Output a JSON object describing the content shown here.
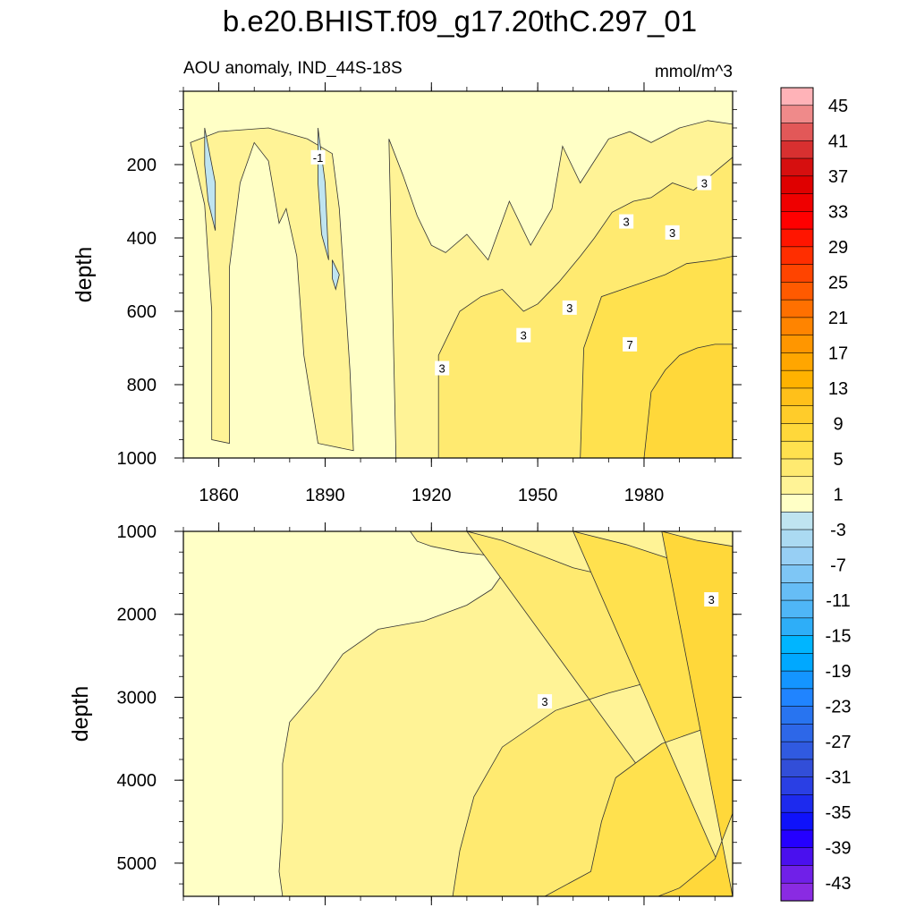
{
  "chart_data": {
    "type": "heatmap",
    "title": "b.e20.BHIST.f09_g17.20thC.297_01",
    "subtitle_left": "AOU anomaly, IND_44S-18S",
    "subtitle_right": "mmol/m^3",
    "x": {
      "range": [
        1850,
        2005
      ],
      "ticks": [
        1860,
        1890,
        1920,
        1950,
        1980
      ]
    },
    "panels": [
      {
        "ylabel": "depth",
        "ylim": [
          0,
          1000
        ],
        "yticks": [
          200,
          400,
          600,
          800,
          1000
        ],
        "regions": [
          {
            "level": 1,
            "pts": [
              [
                1850,
                0
              ],
              [
                2005,
                0
              ],
              [
                2005,
                1000
              ],
              [
                1850,
                1000
              ]
            ]
          },
          {
            "level": 3,
            "pts": [
              [
                1852,
                140
              ],
              [
                1856,
                310
              ],
              [
                1858,
                600
              ],
              [
                1858,
                950
              ],
              [
                1863,
                960
              ],
              [
                1863,
                480
              ],
              [
                1866,
                250
              ],
              [
                1870,
                140
              ],
              [
                1874,
                190
              ],
              [
                1877,
                360
              ],
              [
                1879,
                320
              ],
              [
                1882,
                450
              ],
              [
                1884,
                720
              ],
              [
                1888,
                960
              ],
              [
                1898,
                980
              ],
              [
                1897,
                760
              ],
              [
                1894,
                320
              ],
              [
                1892,
                170
              ],
              [
                1885,
                130
              ],
              [
                1874,
                100
              ],
              [
                1860,
                110
              ]
            ]
          },
          {
            "level": 3,
            "pts": [
              [
                1908,
                130
              ],
              [
                1912,
                230
              ],
              [
                1916,
                340
              ],
              [
                1920,
                420
              ],
              [
                1924,
                440
              ],
              [
                1930,
                390
              ],
              [
                1936,
                460
              ],
              [
                1942,
                300
              ],
              [
                1948,
                420
              ],
              [
                1954,
                320
              ],
              [
                1957,
                150
              ],
              [
                1962,
                250
              ],
              [
                1966,
                190
              ],
              [
                1970,
                130
              ],
              [
                1976,
                110
              ],
              [
                1982,
                140
              ],
              [
                1990,
                100
              ],
              [
                1998,
                80
              ],
              [
                2005,
                90
              ],
              [
                2005,
                1000
              ],
              [
                1910,
                1000
              ]
            ]
          },
          {
            "level": 5,
            "pts": [
              [
                1922,
                1000
              ],
              [
                1922,
                720
              ],
              [
                1928,
                600
              ],
              [
                1934,
                560
              ],
              [
                1940,
                540
              ],
              [
                1946,
                600
              ],
              [
                1950,
                580
              ],
              [
                1956,
                520
              ],
              [
                1962,
                450
              ],
              [
                1966,
                400
              ],
              [
                1971,
                330
              ],
              [
                1977,
                300
              ],
              [
                1982,
                290
              ],
              [
                1988,
                250
              ],
              [
                1994,
                270
              ],
              [
                2000,
                220
              ],
              [
                2005,
                180
              ],
              [
                2005,
                1000
              ]
            ]
          },
          {
            "level": 7,
            "pts": [
              [
                1962,
                1000
              ],
              [
                1963,
                700
              ],
              [
                1968,
                560
              ],
              [
                1974,
                540
              ],
              [
                1980,
                520
              ],
              [
                1986,
                500
              ],
              [
                1992,
                470
              ],
              [
                2000,
                460
              ],
              [
                2005,
                450
              ],
              [
                2005,
                1000
              ]
            ]
          },
          {
            "level": 9,
            "pts": [
              [
                1980,
                1000
              ],
              [
                1982,
                820
              ],
              [
                1986,
                760
              ],
              [
                1990,
                720
              ],
              [
                1995,
                700
              ],
              [
                2000,
                690
              ],
              [
                2005,
                690
              ],
              [
                2005,
                1000
              ]
            ]
          },
          {
            "level": -3,
            "pts": [
              [
                1856,
                100
              ],
              [
                1859,
                250
              ],
              [
                1859,
                380
              ],
              [
                1857,
                300
              ],
              [
                1856,
                200
              ]
            ]
          },
          {
            "level": -3,
            "pts": [
              [
                1888,
                100
              ],
              [
                1890,
                250
              ],
              [
                1891,
                460
              ],
              [
                1889,
                390
              ],
              [
                1888,
                250
              ]
            ]
          },
          {
            "level": -3,
            "pts": [
              [
                1892,
                460
              ],
              [
                1894,
                500
              ],
              [
                1893,
                540
              ],
              [
                1892,
                510
              ]
            ]
          }
        ],
        "labels": [
          {
            "text": "-1",
            "x": 1888,
            "y": 180
          },
          {
            "text": "3",
            "x": 1923,
            "y": 755
          },
          {
            "text": "3",
            "x": 1946,
            "y": 665
          },
          {
            "text": "3",
            "x": 1959,
            "y": 590
          },
          {
            "text": "3",
            "x": 1975,
            "y": 355
          },
          {
            "text": "3",
            "x": 1988,
            "y": 385
          },
          {
            "text": "3",
            "x": 1997,
            "y": 250
          },
          {
            "text": "7",
            "x": 1976,
            "y": 690
          }
        ]
      },
      {
        "ylabel": "depth",
        "ylim": [
          1000,
          5400
        ],
        "yticks": [
          1000,
          2000,
          3000,
          4000,
          5000
        ],
        "regions": [
          {
            "level": 1,
            "pts": [
              [
                1850,
                1000
              ],
              [
                2005,
                1000
              ],
              [
                2005,
                5400
              ],
              [
                1850,
                5400
              ]
            ]
          },
          {
            "level": 3,
            "pts": [
              [
                1914,
                1000
              ],
              [
                1916,
                1120
              ],
              [
                1920,
                1180
              ],
              [
                1928,
                1250
              ],
              [
                1936,
                1290
              ],
              [
                1942,
                1400
              ],
              [
                1937,
                1700
              ],
              [
                1930,
                1890
              ],
              [
                1918,
                2080
              ],
              [
                1905,
                2180
              ],
              [
                1895,
                2480
              ],
              [
                1888,
                2900
              ],
              [
                1880,
                3300
              ],
              [
                1878,
                3800
              ],
              [
                1878,
                4500
              ],
              [
                1877,
                5100
              ],
              [
                1878,
                5400
              ],
              [
                2005,
                5400
              ],
              [
                2005,
                1000
              ]
            ]
          },
          {
            "level": 5,
            "pts": [
              [
                1930,
                1000
              ],
              [
                1940,
                1110
              ],
              [
                1960,
                1440
              ],
              [
                1980,
                1640
              ],
              [
                2005,
                1940
              ],
              [
                2005,
                2560
              ],
              [
                1990,
                2720
              ],
              [
                1970,
                2950
              ],
              [
                1955,
                3160
              ],
              [
                1940,
                3600
              ],
              [
                1932,
                4200
              ],
              [
                1928,
                4850
              ],
              [
                1926,
                5400
              ],
              [
                2005,
                5400
              ]
            ]
          },
          {
            "level": 7,
            "pts": [
              [
                1960,
                1000
              ],
              [
                1975,
                1160
              ],
              [
                1990,
                1370
              ],
              [
                2005,
                1540
              ],
              [
                2005,
                3260
              ],
              [
                1985,
                3560
              ],
              [
                1972,
                3970
              ],
              [
                1968,
                4500
              ],
              [
                1965,
                5100
              ],
              [
                1952,
                5400
              ],
              [
                2005,
                5400
              ]
            ]
          },
          {
            "level": 9,
            "pts": [
              [
                1985,
                1000
              ],
              [
                1995,
                1110
              ],
              [
                2005,
                1180
              ],
              [
                2005,
                4400
              ],
              [
                2000,
                4950
              ],
              [
                1990,
                5300
              ],
              [
                1984,
                5400
              ],
              [
                2005,
                5400
              ]
            ]
          }
        ],
        "labels": [
          {
            "text": "3",
            "x": 1999,
            "y": 1820
          },
          {
            "text": "3",
            "x": 1952,
            "y": 3050
          }
        ]
      }
    ],
    "colorbar": {
      "tick_labels": [
        "45",
        "41",
        "37",
        "33",
        "29",
        "25",
        "21",
        "17",
        "13",
        "9",
        "5",
        "1",
        "-3",
        "-7",
        "-11",
        "-15",
        "-19",
        "-23",
        "-27",
        "-31",
        "-35",
        "-39",
        "-43"
      ],
      "colors_top_to_bottom": [
        "#ffb3b8",
        "#ef8a8a",
        "#e25858",
        "#d83030",
        "#d60f0f",
        "#df0000",
        "#ef0000",
        "#ff0000",
        "#ff1500",
        "#ff2e00",
        "#ff4400",
        "#ff5a00",
        "#ff7000",
        "#ff8400",
        "#ff9600",
        "#ffa600",
        "#ffb200",
        "#ffc01a",
        "#ffcc2a",
        "#ffd83a",
        "#ffe14e",
        "#ffea70",
        "#fff396",
        "#ffffc6",
        "#bfe4f0",
        "#abdaf2",
        "#97cff4",
        "#7ec6f5",
        "#66bdf6",
        "#4fb6f7",
        "#2eaef8",
        "#00b5ff",
        "#00a8ff",
        "#1495ff",
        "#2084ff",
        "#2874f0",
        "#2d67e8",
        "#305ae0",
        "#324ed8",
        "#2a3fe4",
        "#1d2aee",
        "#0f12fa",
        "#2500ff",
        "#4a10ee",
        "#7020e8",
        "#8a2be2"
      ]
    },
    "level_colors": {
      "-3": "#bfe4f0",
      "1": "#ffffc6",
      "3": "#fff396",
      "5": "#ffea70",
      "7": "#ffe14e",
      "9": "#ffd83a"
    }
  }
}
